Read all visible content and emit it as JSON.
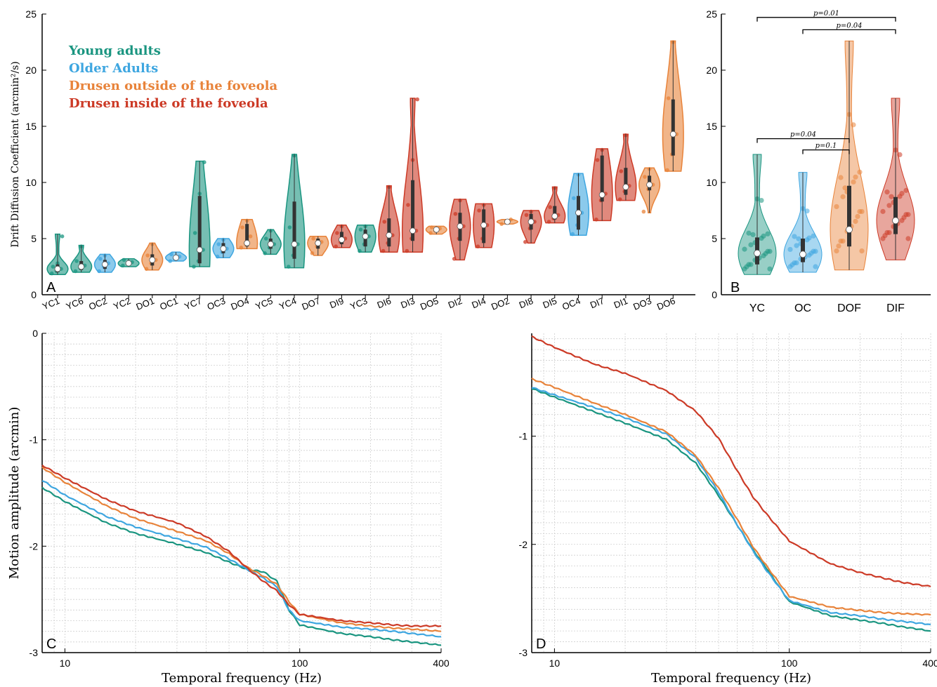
{
  "colors": {
    "young": "#1a9580",
    "older": "#3ea6e0",
    "dof": "#e8833a",
    "dif": "#cc3a26"
  },
  "legend": [
    {
      "label": "Young adults",
      "group": "young"
    },
    {
      "label": "Older Adults",
      "group": "older"
    },
    {
      "label": "Drusen outside of the foveola",
      "group": "dof"
    },
    {
      "label": "Drusen inside of the foveola",
      "group": "dif"
    }
  ],
  "chart_data": [
    {
      "panel": "A",
      "type": "violin",
      "ylabel": "Drift Diffusion Coefficient (arcmin²/s)",
      "ylim": [
        0,
        25
      ],
      "yticks": [
        0,
        5,
        10,
        15,
        20,
        25
      ],
      "subjects": [
        {
          "name": "YC1",
          "group": "young",
          "median": 2.3,
          "q1": 2.0,
          "q3": 2.7,
          "min": 1.8,
          "max": 5.4,
          "points": [
            1.9,
            2.1,
            2.3,
            2.5,
            2.8,
            5.2
          ]
        },
        {
          "name": "YC6",
          "group": "young",
          "median": 2.5,
          "q1": 2.2,
          "q3": 3.0,
          "min": 2.0,
          "max": 4.4,
          "points": [
            2.1,
            2.4,
            2.6,
            3.0,
            4.3
          ]
        },
        {
          "name": "OC2",
          "group": "older",
          "median": 2.7,
          "q1": 2.3,
          "q3": 3.1,
          "min": 2.0,
          "max": 3.6,
          "points": [
            2.1,
            2.5,
            2.8,
            3.2,
            3.5
          ]
        },
        {
          "name": "YC2",
          "group": "young",
          "median": 2.8,
          "q1": 2.6,
          "q3": 3.0,
          "min": 2.5,
          "max": 3.2,
          "points": [
            2.6,
            2.8,
            2.9,
            3.1
          ]
        },
        {
          "name": "DO1",
          "group": "dof",
          "median": 3.1,
          "q1": 2.6,
          "q3": 3.6,
          "min": 2.2,
          "max": 4.6,
          "points": [
            2.3,
            2.8,
            3.1,
            3.5,
            4.5
          ]
        },
        {
          "name": "OC1",
          "group": "older",
          "median": 3.3,
          "q1": 3.1,
          "q3": 3.5,
          "min": 3.0,
          "max": 3.8,
          "points": [
            3.0,
            3.2,
            3.4,
            3.6
          ]
        },
        {
          "name": "YC7",
          "group": "young",
          "median": 4.0,
          "q1": 2.8,
          "q3": 8.8,
          "min": 2.5,
          "max": 11.9,
          "points": [
            2.5,
            3.0,
            4.0,
            5.5,
            9.0,
            11.8
          ]
        },
        {
          "name": "OC3",
          "group": "older",
          "median": 4.1,
          "q1": 3.7,
          "q3": 4.6,
          "min": 3.3,
          "max": 5.0,
          "points": [
            3.4,
            3.8,
            4.1,
            4.5,
            4.9
          ]
        },
        {
          "name": "DO4",
          "group": "dof",
          "median": 4.6,
          "q1": 4.3,
          "q3": 6.3,
          "min": 4.1,
          "max": 6.7,
          "points": [
            4.2,
            4.5,
            5.2,
            6.0,
            6.6
          ]
        },
        {
          "name": "YC5",
          "group": "young",
          "median": 4.5,
          "q1": 4.1,
          "q3": 5.0,
          "min": 3.6,
          "max": 5.8,
          "points": [
            3.7,
            4.2,
            4.5,
            5.0,
            5.7
          ]
        },
        {
          "name": "YC4",
          "group": "young",
          "median": 4.5,
          "q1": 3.2,
          "q3": 8.3,
          "min": 2.4,
          "max": 12.5,
          "points": [
            2.5,
            3.5,
            4.5,
            6.0,
            12.4
          ]
        },
        {
          "name": "DO7",
          "group": "dof",
          "median": 4.6,
          "q1": 4.1,
          "q3": 5.0,
          "min": 3.5,
          "max": 5.2,
          "points": [
            3.7,
            4.3,
            4.7,
            5.0
          ]
        },
        {
          "name": "DI9",
          "group": "dif",
          "median": 4.9,
          "q1": 4.5,
          "q3": 5.6,
          "min": 4.2,
          "max": 6.2,
          "points": [
            4.3,
            4.7,
            5.0,
            5.5,
            6.1
          ]
        },
        {
          "name": "YC3",
          "group": "young",
          "median": 5.2,
          "q1": 4.3,
          "q3": 5.8,
          "min": 3.8,
          "max": 6.2,
          "points": [
            3.9,
            4.5,
            5.2,
            5.8,
            6.1
          ]
        },
        {
          "name": "DI6",
          "group": "dif",
          "median": 5.3,
          "q1": 4.3,
          "q3": 6.8,
          "min": 3.8,
          "max": 9.7,
          "points": [
            3.9,
            4.6,
            5.3,
            6.5,
            9.6
          ]
        },
        {
          "name": "DI3",
          "group": "dif",
          "median": 5.7,
          "q1": 4.8,
          "q3": 10.2,
          "min": 3.8,
          "max": 17.5,
          "points": [
            3.9,
            5.0,
            5.7,
            8.0,
            12.0,
            17.4
          ]
        },
        {
          "name": "DO5",
          "group": "dof",
          "median": 5.8,
          "q1": 5.6,
          "q3": 6.0,
          "min": 5.4,
          "max": 6.1,
          "points": [
            5.5,
            5.7,
            5.9,
            6.0
          ]
        },
        {
          "name": "DI2",
          "group": "dif",
          "median": 6.1,
          "q1": 4.8,
          "q3": 7.3,
          "min": 3.1,
          "max": 8.5,
          "points": [
            3.2,
            5.0,
            6.1,
            7.2,
            8.4
          ]
        },
        {
          "name": "DI4",
          "group": "dif",
          "median": 6.2,
          "q1": 4.6,
          "q3": 7.6,
          "min": 4.2,
          "max": 8.1,
          "points": [
            4.3,
            5.0,
            6.2,
            7.5,
            8.0
          ]
        },
        {
          "name": "DO2",
          "group": "dof",
          "median": 6.5,
          "q1": 6.4,
          "q3": 6.6,
          "min": 6.3,
          "max": 6.7,
          "points": [
            6.3,
            6.5,
            6.7
          ]
        },
        {
          "name": "DI8",
          "group": "dif",
          "median": 6.5,
          "q1": 5.8,
          "q3": 7.2,
          "min": 4.6,
          "max": 7.5,
          "points": [
            4.7,
            5.9,
            6.5,
            7.1,
            7.4
          ]
        },
        {
          "name": "DI5",
          "group": "dif",
          "median": 7.0,
          "q1": 6.7,
          "q3": 7.9,
          "min": 6.4,
          "max": 9.6,
          "points": [
            6.5,
            6.8,
            7.1,
            7.8,
            9.5
          ]
        },
        {
          "name": "OC4",
          "group": "older",
          "median": 7.3,
          "q1": 5.8,
          "q3": 8.8,
          "min": 5.3,
          "max": 10.8,
          "points": [
            5.4,
            6.2,
            7.3,
            8.6,
            10.7
          ]
        },
        {
          "name": "DI7",
          "group": "dif",
          "median": 8.9,
          "q1": 8.3,
          "q3": 12.4,
          "min": 6.6,
          "max": 13.0,
          "points": [
            6.7,
            8.4,
            9.0,
            12.0,
            12.9
          ]
        },
        {
          "name": "DI1",
          "group": "dif",
          "median": 9.6,
          "q1": 8.9,
          "q3": 11.3,
          "min": 8.4,
          "max": 14.3,
          "points": [
            8.5,
            9.2,
            9.7,
            11.0,
            14.2
          ]
        },
        {
          "name": "DO3",
          "group": "dof",
          "median": 9.8,
          "q1": 9.3,
          "q3": 10.6,
          "min": 7.3,
          "max": 11.3,
          "points": [
            7.4,
            9.4,
            9.8,
            10.5,
            11.2
          ]
        },
        {
          "name": "DO6",
          "group": "dof",
          "median": 14.3,
          "q1": 12.4,
          "q3": 17.4,
          "min": 11.0,
          "max": 22.6,
          "points": [
            11.1,
            12.5,
            14.3,
            17.5,
            22.5
          ]
        }
      ]
    },
    {
      "panel": "B",
      "type": "violin",
      "ylim": [
        0,
        25
      ],
      "yticks": [
        0,
        5,
        10,
        15,
        20,
        25
      ],
      "groups": [
        {
          "name": "YC",
          "group": "young",
          "median": 3.7,
          "q1": 2.7,
          "q3": 5.1,
          "min": 1.8,
          "max": 12.5
        },
        {
          "name": "OC",
          "group": "older",
          "median": 3.6,
          "q1": 2.9,
          "q3": 5.0,
          "min": 2.0,
          "max": 10.9
        },
        {
          "name": "DOF",
          "group": "dof",
          "median": 5.8,
          "q1": 4.3,
          "q3": 9.7,
          "min": 2.2,
          "max": 22.6
        },
        {
          "name": "DIF",
          "group": "dif",
          "median": 6.6,
          "q1": 5.4,
          "q3": 8.7,
          "min": 3.1,
          "max": 17.5
        }
      ],
      "comparisons": [
        {
          "from": "YC",
          "to": "DIF",
          "label": "p=0.01",
          "y": 24.7
        },
        {
          "from": "OC",
          "to": "DIF",
          "label": "p=0.04",
          "y": 23.6
        },
        {
          "from": "YC",
          "to": "DOF",
          "label": "p=0.04",
          "y": 13.9
        },
        {
          "from": "OC",
          "to": "DOF",
          "label": "p=0.1",
          "y": 12.9
        }
      ]
    },
    {
      "panel": "C",
      "type": "line",
      "xscale": "log",
      "xlabel": "Temporal frequency (Hz)",
      "ylabel": "Motion amplitude (arcmin)",
      "xlim": [
        8,
        400
      ],
      "ylim": [
        -3,
        0
      ],
      "xticks": [
        10,
        100,
        400
      ],
      "yticks": [
        -3,
        -2,
        -1,
        0
      ],
      "series": [
        {
          "group": "young",
          "x": [
            8,
            10,
            15,
            20,
            30,
            40,
            50,
            60,
            70,
            80,
            90,
            100,
            150,
            200,
            250,
            300,
            400
          ],
          "y": [
            -1.45,
            -1.58,
            -1.78,
            -1.88,
            -1.98,
            -2.06,
            -2.15,
            -2.22,
            -2.24,
            -2.33,
            -2.6,
            -2.74,
            -2.82,
            -2.85,
            -2.88,
            -2.9,
            -2.93
          ]
        },
        {
          "group": "older",
          "x": [
            8,
            10,
            15,
            20,
            30,
            40,
            50,
            60,
            70,
            80,
            90,
            100,
            150,
            200,
            250,
            300,
            400
          ],
          "y": [
            -1.38,
            -1.52,
            -1.72,
            -1.82,
            -1.93,
            -2.01,
            -2.12,
            -2.22,
            -2.3,
            -2.38,
            -2.6,
            -2.7,
            -2.76,
            -2.78,
            -2.8,
            -2.82,
            -2.85
          ]
        },
        {
          "group": "dof",
          "x": [
            8,
            10,
            15,
            20,
            30,
            40,
            50,
            60,
            70,
            80,
            90,
            100,
            150,
            200,
            250,
            300,
            400
          ],
          "y": [
            -1.26,
            -1.4,
            -1.62,
            -1.74,
            -1.86,
            -1.95,
            -2.07,
            -2.2,
            -2.28,
            -2.36,
            -2.52,
            -2.64,
            -2.72,
            -2.75,
            -2.77,
            -2.78,
            -2.8
          ]
        },
        {
          "group": "dif",
          "x": [
            8,
            10,
            15,
            20,
            30,
            40,
            50,
            60,
            70,
            80,
            90,
            100,
            150,
            200,
            250,
            300,
            400
          ],
          "y": [
            -1.24,
            -1.36,
            -1.56,
            -1.67,
            -1.78,
            -1.91,
            -2.05,
            -2.21,
            -2.33,
            -2.42,
            -2.55,
            -2.64,
            -2.7,
            -2.72,
            -2.74,
            -2.75,
            -2.75
          ]
        }
      ]
    },
    {
      "panel": "D",
      "type": "line",
      "xscale": "log",
      "xlabel": "Temporal frequency (Hz)",
      "xlim": [
        8,
        400
      ],
      "ylim": [
        -3,
        -0.05
      ],
      "xticks": [
        10,
        100,
        400
      ],
      "yticks": [
        -3,
        -2,
        -1
      ],
      "series": [
        {
          "group": "young",
          "x": [
            8,
            10,
            15,
            20,
            30,
            40,
            50,
            60,
            70,
            80,
            100,
            150,
            200,
            250,
            300,
            400
          ],
          "y": [
            -0.56,
            -0.64,
            -0.78,
            -0.88,
            -1.03,
            -1.25,
            -1.55,
            -1.82,
            -2.05,
            -2.22,
            -2.53,
            -2.66,
            -2.7,
            -2.73,
            -2.76,
            -2.8
          ]
        },
        {
          "group": "older",
          "x": [
            8,
            10,
            15,
            20,
            30,
            40,
            50,
            60,
            70,
            80,
            100,
            150,
            200,
            250,
            300,
            400
          ],
          "y": [
            -0.55,
            -0.62,
            -0.74,
            -0.83,
            -0.98,
            -1.2,
            -1.52,
            -1.82,
            -2.06,
            -2.24,
            -2.52,
            -2.63,
            -2.66,
            -2.69,
            -2.71,
            -2.74
          ]
        },
        {
          "group": "dof",
          "x": [
            8,
            10,
            15,
            20,
            30,
            40,
            50,
            60,
            70,
            80,
            100,
            150,
            200,
            250,
            300,
            400
          ],
          "y": [
            -0.47,
            -0.55,
            -0.7,
            -0.8,
            -0.96,
            -1.18,
            -1.48,
            -1.77,
            -2.02,
            -2.2,
            -2.48,
            -2.58,
            -2.61,
            -2.63,
            -2.64,
            -2.65
          ]
        },
        {
          "group": "dif",
          "x": [
            8,
            10,
            15,
            20,
            30,
            40,
            50,
            60,
            70,
            80,
            100,
            150,
            200,
            250,
            300,
            400
          ],
          "y": [
            -0.08,
            -0.18,
            -0.34,
            -0.42,
            -0.58,
            -0.77,
            -1.02,
            -1.32,
            -1.56,
            -1.72,
            -1.97,
            -2.18,
            -2.26,
            -2.31,
            -2.35,
            -2.39
          ]
        }
      ]
    }
  ]
}
